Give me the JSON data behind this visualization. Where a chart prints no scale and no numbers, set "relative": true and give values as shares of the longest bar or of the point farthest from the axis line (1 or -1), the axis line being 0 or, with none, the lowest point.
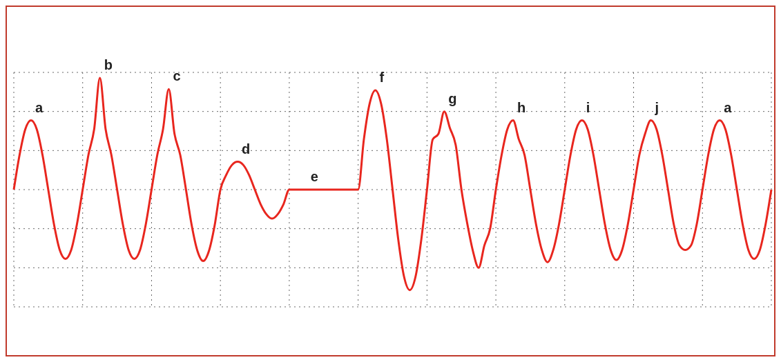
{
  "chart_data": {
    "type": "line",
    "relative": true,
    "grid": true,
    "marker": "none",
    "line_style": "solid",
    "categories": [
      null,
      null,
      null,
      null,
      null,
      null,
      null,
      null,
      null,
      null,
      null,
      null,
      null,
      null,
      null,
      null,
      null,
      null,
      null,
      null,
      null,
      null,
      null,
      null,
      null,
      null,
      null,
      null,
      null,
      null,
      null,
      null,
      null,
      null,
      null,
      null,
      null,
      null,
      null,
      null,
      null,
      null,
      null,
      null,
      null,
      null,
      null,
      null,
      null,
      null,
      null,
      null,
      null,
      null,
      null,
      null,
      null,
      null,
      null,
      null,
      null,
      null,
      null,
      null,
      null,
      null,
      null,
      null,
      null,
      null,
      null,
      null,
      null,
      null,
      null,
      null,
      null,
      null,
      null,
      null,
      null,
      null,
      null,
      null,
      null,
      null,
      null,
      null,
      null,
      null,
      null,
      null,
      null,
      null,
      null,
      null,
      null,
      null,
      null,
      null,
      null,
      null,
      null,
      null,
      null,
      null,
      null,
      null,
      null,
      null,
      null,
      null,
      null,
      null,
      null,
      null,
      null,
      null,
      null,
      null,
      null,
      null,
      null,
      null,
      null,
      null,
      null,
      null,
      null,
      null,
      null,
      null,
      null
    ],
    "series": [
      {
        "color": "#e8261e",
        "values": [
          0,
          0.31,
          0.54,
          0.62,
          0.54,
          0.31,
          0,
          -0.31,
          -0.54,
          -0.62,
          -0.54,
          -0.31,
          0,
          0.31,
          0.54,
          1.0,
          0.54,
          0.31,
          0,
          -0.31,
          -0.54,
          -0.62,
          -0.54,
          -0.31,
          0,
          0.31,
          0.54,
          0.9,
          0.5,
          0.31,
          0,
          -0.32,
          -0.55,
          -0.64,
          -0.55,
          -0.32,
          0,
          0.13,
          0.22,
          0.25,
          0.22,
          0.13,
          0,
          -0.13,
          -0.22,
          -0.26,
          -0.22,
          -0.13,
          0,
          0,
          0,
          0,
          0,
          0,
          0,
          0,
          0,
          0,
          0,
          0,
          0,
          0.45,
          0.77,
          0.89,
          0.77,
          0.45,
          0,
          -0.45,
          -0.78,
          -0.9,
          -0.78,
          -0.45,
          0,
          0.45,
          0.5,
          0.7,
          0.55,
          0.4,
          0,
          -0.3,
          -0.55,
          -0.7,
          -0.5,
          -0.35,
          0,
          0.31,
          0.54,
          0.62,
          0.45,
          0.31,
          0,
          -0.31,
          -0.54,
          -0.65,
          -0.54,
          -0.31,
          0,
          0.31,
          0.54,
          0.62,
          0.54,
          0.31,
          0,
          -0.31,
          -0.54,
          -0.63,
          -0.54,
          -0.31,
          0,
          0.31,
          0.5,
          0.62,
          0.54,
          0.31,
          0,
          -0.31,
          -0.5,
          -0.54,
          -0.5,
          -0.31,
          0,
          0.31,
          0.54,
          0.62,
          0.54,
          0.31,
          0,
          -0.31,
          -0.54,
          -0.62,
          -0.54,
          -0.31,
          0
        ]
      }
    ],
    "annotations": [
      "a",
      "b",
      "c",
      "d",
      "e",
      "f",
      "g",
      "h",
      "i",
      "j",
      "a"
    ]
  }
}
